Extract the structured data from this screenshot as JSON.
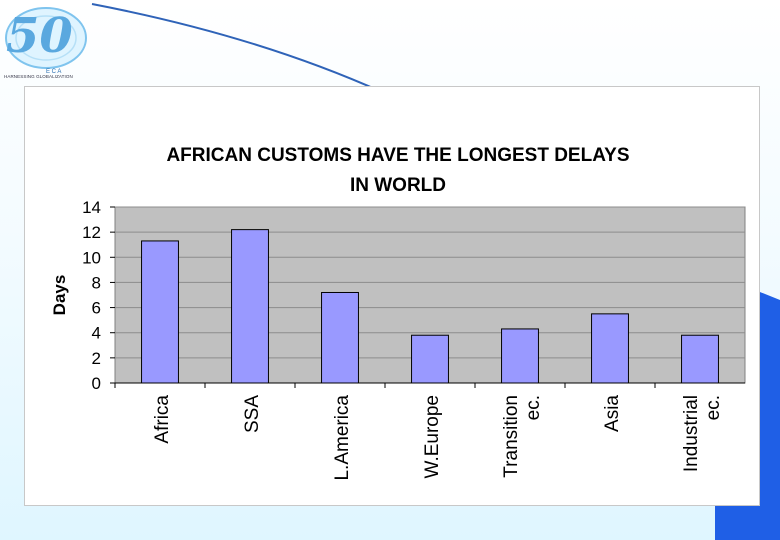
{
  "slide": {
    "logo_number": "50",
    "logo_org": "E C A",
    "logo_tagline": "HARNESSING GLOBALIZATION",
    "footer_left": "",
    "footer_center": "",
    "footer_right": ""
  },
  "colors": {
    "bar_fill": "#9999ff",
    "plot_bg": "#c0c0c0",
    "accent_blue": "#1f5fe6",
    "curve_blue": "#2f63b8"
  },
  "chart_data": {
    "type": "bar",
    "title_lines": [
      "AFRICAN CUSTOMS HAVE THE LONGEST DELAYS",
      "IN WORLD"
    ],
    "xlabel": "",
    "ylabel": "Days",
    "ylim": [
      0,
      14
    ],
    "yticks": [
      0,
      2,
      4,
      6,
      8,
      10,
      12,
      14
    ],
    "grid": true,
    "legend": "none",
    "categories": [
      [
        "Africa"
      ],
      [
        "SSA"
      ],
      [
        "L.America"
      ],
      [
        "W.Europe"
      ],
      [
        "Transition",
        "ec."
      ],
      [
        "Asia"
      ],
      [
        "Industrial",
        "ec."
      ]
    ],
    "values": [
      11.3,
      12.2,
      7.2,
      3.8,
      4.3,
      5.5,
      3.8
    ]
  }
}
